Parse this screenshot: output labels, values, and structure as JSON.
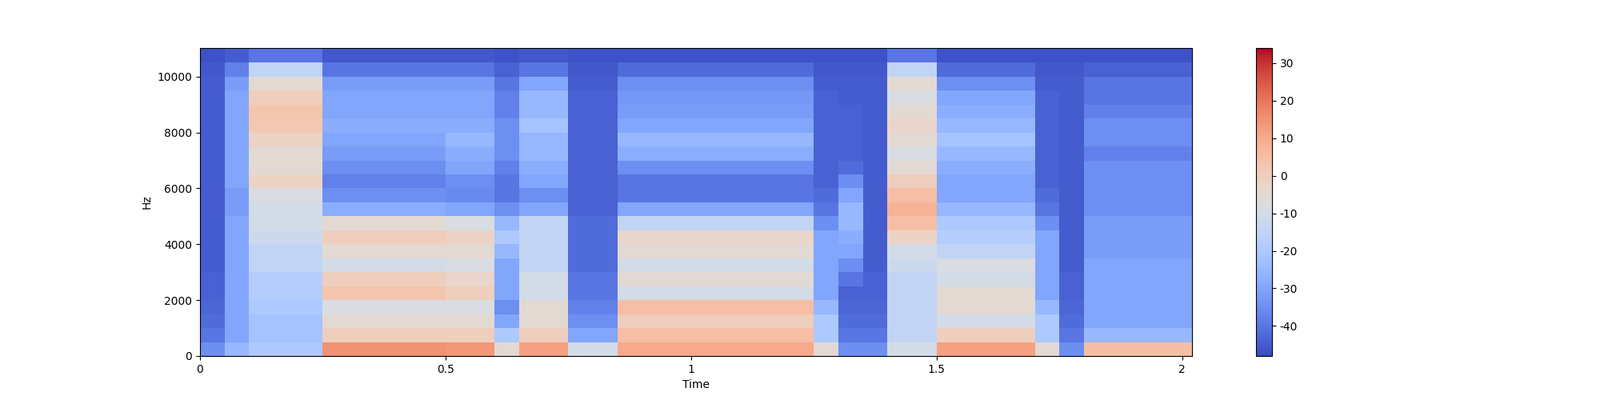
{
  "chart_data": {
    "type": "heatmap",
    "xlabel": "Time",
    "ylabel": "Hz",
    "color": "coolwarm",
    "xlim": [
      0,
      2.02
    ],
    "xticks": [
      0,
      0.5,
      1,
      1.5,
      2
    ],
    "ylim": [
      0,
      11025
    ],
    "yticks": [
      0,
      2000,
      4000,
      6000,
      8000,
      10000
    ],
    "color_range": [
      -48,
      34
    ],
    "color_ticks": [
      -40,
      -30,
      -20,
      -10,
      0,
      10,
      20,
      30
    ],
    "x_edges": [
      0,
      0.05,
      0.1,
      0.15,
      0.2,
      0.25,
      0.3,
      0.35,
      0.4,
      0.45,
      0.5,
      0.55,
      0.6,
      0.65,
      0.7,
      0.75,
      0.8,
      0.85,
      0.9,
      0.95,
      1,
      1.05,
      1.1,
      1.15,
      1.2,
      1.25,
      1.3,
      1.35,
      1.4,
      1.45,
      1.5,
      1.55,
      1.6,
      1.65,
      1.7,
      1.75,
      1.8,
      1.85,
      1.9,
      1.95,
      2,
      2.05
    ],
    "y_edges": [
      0,
      500,
      1000,
      1500,
      2000,
      2500,
      3000,
      3500,
      4000,
      4500,
      5000,
      5500,
      6000,
      6500,
      7000,
      7500,
      8000,
      8500,
      9000,
      9500,
      10000,
      10500,
      11025
    ],
    "cells": [
      [
        -35,
        -40,
        -42,
        -43,
        -44,
        -44,
        -45,
        -45,
        -45,
        -45,
        -45,
        -45,
        -45,
        -45,
        -45,
        -45,
        -45,
        -45,
        -45,
        -45,
        -46,
        -47
      ],
      [
        -25,
        -30,
        -30,
        -30,
        -30,
        -30,
        -30,
        -30,
        -30,
        -30,
        -32,
        -32,
        -30,
        -30,
        -30,
        -30,
        -30,
        -30,
        -30,
        -32,
        -38,
        -45
      ],
      [
        -20,
        -22,
        -22,
        -20,
        -18,
        -18,
        -15,
        -15,
        -12,
        -10,
        -10,
        -8,
        -2,
        -5,
        -5,
        -2,
        2,
        3,
        0,
        -5,
        -15,
        -40
      ],
      [
        -20,
        -22,
        -22,
        -20,
        -18,
        -18,
        -15,
        -15,
        -12,
        -10,
        -10,
        -8,
        -2,
        -5,
        -5,
        -2,
        2,
        3,
        0,
        -5,
        -15,
        -40
      ],
      [
        -20,
        -22,
        -22,
        -20,
        -18,
        -18,
        -15,
        -15,
        -12,
        -10,
        -10,
        -8,
        -2,
        -5,
        -5,
        -2,
        2,
        3,
        0,
        -5,
        -15,
        -40
      ],
      [
        15,
        0,
        -5,
        -8,
        3,
        0,
        -10,
        -5,
        0,
        -5,
        -28,
        -35,
        -38,
        -35,
        -32,
        -30,
        -28,
        -30,
        -30,
        -32,
        -40,
        -46
      ],
      [
        15,
        0,
        -5,
        -8,
        3,
        0,
        -10,
        -5,
        0,
        -5,
        -28,
        -35,
        -38,
        -35,
        -32,
        -30,
        -28,
        -30,
        -30,
        -32,
        -40,
        -46
      ],
      [
        15,
        0,
        -5,
        -8,
        3,
        0,
        -10,
        -5,
        0,
        -5,
        -28,
        -35,
        -38,
        -35,
        -32,
        -30,
        -28,
        -30,
        -30,
        -32,
        -40,
        -46
      ],
      [
        15,
        0,
        -5,
        -8,
        3,
        0,
        -10,
        -5,
        0,
        -5,
        -28,
        -35,
        -38,
        -35,
        -32,
        -30,
        -28,
        -30,
        -30,
        -32,
        -40,
        -46
      ],
      [
        15,
        0,
        -5,
        -8,
        3,
        0,
        -10,
        -5,
        0,
        -5,
        -28,
        -35,
        -38,
        -35,
        -32,
        -30,
        -28,
        -30,
        -30,
        -32,
        -40,
        -46
      ],
      [
        14,
        0,
        -5,
        -8,
        0,
        -3,
        -8,
        -5,
        -2,
        -8,
        -30,
        -36,
        -35,
        -30,
        -28,
        -25,
        -28,
        -30,
        -30,
        -32,
        -40,
        -46
      ],
      [
        14,
        0,
        -5,
        -8,
        0,
        -3,
        -8,
        -5,
        -2,
        -8,
        -30,
        -36,
        -35,
        -30,
        -28,
        -25,
        -28,
        -30,
        -30,
        -32,
        -40,
        -46
      ],
      [
        -5,
        -20,
        -30,
        -35,
        -30,
        -30,
        -30,
        -25,
        -20,
        -25,
        -35,
        -40,
        -40,
        -38,
        -35,
        -35,
        -35,
        -38,
        -38,
        -40,
        -44,
        -47
      ],
      [
        12,
        0,
        -5,
        -5,
        -10,
        -10,
        -15,
        -15,
        -15,
        -15,
        -30,
        -35,
        -30,
        -28,
        -25,
        -25,
        -22,
        -25,
        -25,
        -30,
        -40,
        -46
      ],
      [
        12,
        0,
        -5,
        -5,
        -10,
        -10,
        -15,
        -15,
        -15,
        -15,
        -30,
        -35,
        -30,
        -28,
        -25,
        -25,
        -22,
        -25,
        -25,
        -30,
        -40,
        -46
      ],
      [
        -10,
        -30,
        -35,
        -38,
        -40,
        -40,
        -42,
        -42,
        -42,
        -42,
        -44,
        -44,
        -44,
        -44,
        -44,
        -44,
        -44,
        -44,
        -44,
        -45,
        -46,
        -47
      ],
      [
        -10,
        -30,
        -35,
        -38,
        -40,
        -40,
        -42,
        -42,
        -42,
        -42,
        -44,
        -44,
        -44,
        -44,
        -44,
        -44,
        -44,
        -44,
        -44,
        -45,
        -46,
        -47
      ],
      [
        10,
        5,
        0,
        5,
        -10,
        -5,
        -10,
        -5,
        -3,
        -15,
        -30,
        -40,
        -40,
        -35,
        -28,
        -25,
        -30,
        -32,
        -33,
        -35,
        -42,
        -47
      ],
      [
        10,
        5,
        0,
        5,
        -10,
        -5,
        -10,
        -5,
        -3,
        -15,
        -30,
        -40,
        -40,
        -35,
        -28,
        -25,
        -30,
        -32,
        -33,
        -35,
        -42,
        -47
      ],
      [
        10,
        5,
        0,
        5,
        -10,
        -5,
        -10,
        -5,
        -3,
        -15,
        -30,
        -40,
        -40,
        -35,
        -28,
        -25,
        -30,
        -32,
        -33,
        -35,
        -42,
        -47
      ],
      [
        10,
        5,
        0,
        5,
        -10,
        -5,
        -10,
        -5,
        -3,
        -15,
        -30,
        -40,
        -40,
        -35,
        -28,
        -25,
        -30,
        -32,
        -33,
        -35,
        -42,
        -47
      ],
      [
        10,
        5,
        0,
        5,
        -10,
        -5,
        -10,
        -5,
        -3,
        -15,
        -30,
        -40,
        -40,
        -35,
        -28,
        -25,
        -30,
        -32,
        -33,
        -35,
        -42,
        -47
      ],
      [
        10,
        5,
        0,
        5,
        -10,
        -5,
        -10,
        -5,
        -3,
        -15,
        -30,
        -40,
        -40,
        -35,
        -28,
        -25,
        -30,
        -32,
        -33,
        -35,
        -42,
        -47
      ],
      [
        10,
        5,
        0,
        5,
        -10,
        -5,
        -10,
        -5,
        -3,
        -15,
        -30,
        -40,
        -40,
        -35,
        -28,
        -25,
        -30,
        -32,
        -33,
        -35,
        -42,
        -47
      ],
      [
        10,
        5,
        0,
        5,
        -10,
        -5,
        -10,
        -5,
        -3,
        -15,
        -30,
        -40,
        -40,
        -35,
        -28,
        -25,
        -30,
        -32,
        -33,
        -35,
        -42,
        -47
      ],
      [
        -5,
        -20,
        -20,
        -25,
        -30,
        -30,
        -30,
        -30,
        -30,
        -35,
        -40,
        -42,
        -44,
        -44,
        -44,
        -44,
        -44,
        -44,
        -44,
        -45,
        -46,
        -47
      ],
      [
        -35,
        -40,
        -42,
        -43,
        -44,
        -40,
        -35,
        -30,
        -28,
        -25,
        -25,
        -30,
        -35,
        -42,
        -44,
        -44,
        -44,
        -44,
        -45,
        -45,
        -46,
        -47
      ],
      [
        -35,
        -40,
        -42,
        -43,
        -44,
        -44,
        -45,
        -45,
        -45,
        -45,
        -45,
        -45,
        -45,
        -45,
        -45,
        -45,
        -45,
        -45,
        -45,
        -45,
        -46,
        -47
      ],
      [
        -10,
        -15,
        -15,
        -15,
        -15,
        -15,
        -12,
        -10,
        -2,
        5,
        8,
        5,
        0,
        -5,
        -8,
        -5,
        -3,
        -5,
        -8,
        -5,
        -15,
        -40
      ],
      [
        -10,
        -15,
        -15,
        -15,
        -15,
        -15,
        -12,
        -10,
        -2,
        5,
        8,
        5,
        0,
        -5,
        -8,
        -5,
        -3,
        -5,
        -8,
        -5,
        -15,
        -40
      ],
      [
        12,
        0,
        -10,
        -5,
        -5,
        -10,
        -8,
        -15,
        -18,
        -20,
        -25,
        -30,
        -30,
        -28,
        -25,
        -22,
        -25,
        -28,
        -30,
        -35,
        -42,
        -47
      ],
      [
        12,
        0,
        -10,
        -5,
        -5,
        -10,
        -8,
        -15,
        -18,
        -20,
        -25,
        -30,
        -30,
        -28,
        -25,
        -22,
        -25,
        -28,
        -30,
        -35,
        -42,
        -47
      ],
      [
        12,
        0,
        -10,
        -5,
        -5,
        -10,
        -8,
        -15,
        -18,
        -20,
        -25,
        -30,
        -30,
        -28,
        -25,
        -22,
        -25,
        -28,
        -30,
        -35,
        -42,
        -47
      ],
      [
        12,
        0,
        -10,
        -5,
        -5,
        -10,
        -8,
        -15,
        -18,
        -20,
        -25,
        -30,
        -30,
        -28,
        -25,
        -22,
        -25,
        -28,
        -30,
        -35,
        -42,
        -47
      ],
      [
        -5,
        -20,
        -20,
        -25,
        -30,
        -30,
        -30,
        -30,
        -30,
        -35,
        -40,
        -42,
        -44,
        -44,
        -44,
        -44,
        -44,
        -44,
        -44,
        -45,
        -46,
        -47
      ],
      [
        -35,
        -40,
        -42,
        -43,
        -44,
        -44,
        -45,
        -45,
        -45,
        -45,
        -45,
        -45,
        -45,
        -45,
        -45,
        -45,
        -45,
        -45,
        -45,
        -45,
        -46,
        -47
      ],
      [
        5,
        -25,
        -30,
        -30,
        -30,
        -30,
        -30,
        -32,
        -32,
        -32,
        -35,
        -35,
        -35,
        -35,
        -38,
        -35,
        -35,
        -38,
        -40,
        -40,
        -44,
        -47
      ],
      [
        5,
        -25,
        -30,
        -30,
        -30,
        -30,
        -30,
        -32,
        -32,
        -32,
        -35,
        -35,
        -35,
        -35,
        -38,
        -35,
        -35,
        -38,
        -40,
        -40,
        -44,
        -47
      ],
      [
        5,
        -25,
        -30,
        -30,
        -30,
        -30,
        -30,
        -32,
        -32,
        -32,
        -35,
        -35,
        -35,
        -35,
        -38,
        -35,
        -35,
        -38,
        -40,
        -40,
        -44,
        -47
      ],
      [
        5,
        -25,
        -30,
        -30,
        -30,
        -30,
        -30,
        -32,
        -32,
        -32,
        -35,
        -35,
        -35,
        -35,
        -38,
        -35,
        -35,
        -38,
        -40,
        -40,
        -44,
        -47
      ],
      [
        5,
        -25,
        -30,
        -30,
        -30,
        -30,
        -30,
        -32,
        -32,
        -32,
        -35,
        -35,
        -35,
        -35,
        -38,
        -35,
        -35,
        -38,
        -40,
        -40,
        -44,
        -47
      ]
    ]
  }
}
